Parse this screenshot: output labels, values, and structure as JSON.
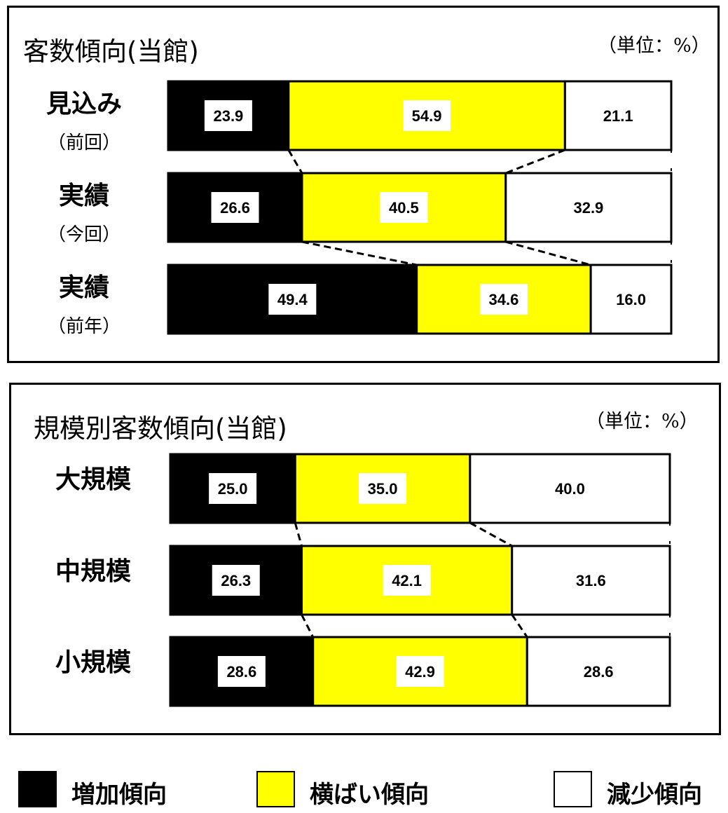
{
  "colors": {
    "increase": "#000000",
    "flat": "#ffff00",
    "decrease": "#ffffff"
  },
  "legend": [
    {
      "label": "増加傾向",
      "color": "#000000"
    },
    {
      "label": "横ばい傾向",
      "color": "#ffff00"
    },
    {
      "label": "減少傾向",
      "color": "#ffffff"
    }
  ],
  "chart_data": [
    {
      "type": "bar",
      "orientation": "horizontal",
      "stacked": true,
      "percent": true,
      "title": "客数傾向(当館)",
      "unit_note": "（単位：%）",
      "categories": [
        {
          "label": "見込み",
          "sublabel": "（前回）"
        },
        {
          "label": "実績",
          "sublabel": "（今回）"
        },
        {
          "label": "実績",
          "sublabel": "（前年）"
        }
      ],
      "series": [
        {
          "name": "増加傾向",
          "values": [
            23.9,
            26.6,
            49.4
          ]
        },
        {
          "name": "横ばい傾向",
          "values": [
            54.9,
            40.5,
            34.6
          ]
        },
        {
          "name": "減少傾向",
          "values": [
            21.1,
            32.9,
            16.0
          ]
        }
      ],
      "value_labels": [
        [
          "23.9",
          "26.6",
          "49.4"
        ],
        [
          "54.9",
          "40.5",
          "34.6"
        ],
        [
          "21.1",
          "32.9",
          "16.0"
        ]
      ],
      "xlim": [
        0,
        100
      ],
      "connector_lines": true
    },
    {
      "type": "bar",
      "orientation": "horizontal",
      "stacked": true,
      "percent": true,
      "title": "規模別客数傾向(当館)",
      "unit_note": "（単位：%）",
      "categories": [
        {
          "label": "大規模",
          "sublabel": ""
        },
        {
          "label": "中規模",
          "sublabel": ""
        },
        {
          "label": "小規模",
          "sublabel": ""
        }
      ],
      "series": [
        {
          "name": "増加傾向",
          "values": [
            25.0,
            26.3,
            28.6
          ]
        },
        {
          "name": "横ばい傾向",
          "values": [
            35.0,
            42.1,
            42.9
          ]
        },
        {
          "name": "減少傾向",
          "values": [
            40.0,
            31.6,
            28.6
          ]
        }
      ],
      "value_labels": [
        [
          "25.0",
          "26.3",
          "28.6"
        ],
        [
          "35.0",
          "42.1",
          "42.9"
        ],
        [
          "40.0",
          "31.6",
          "28.6"
        ]
      ],
      "xlim": [
        0,
        100
      ],
      "connector_lines": true
    }
  ]
}
